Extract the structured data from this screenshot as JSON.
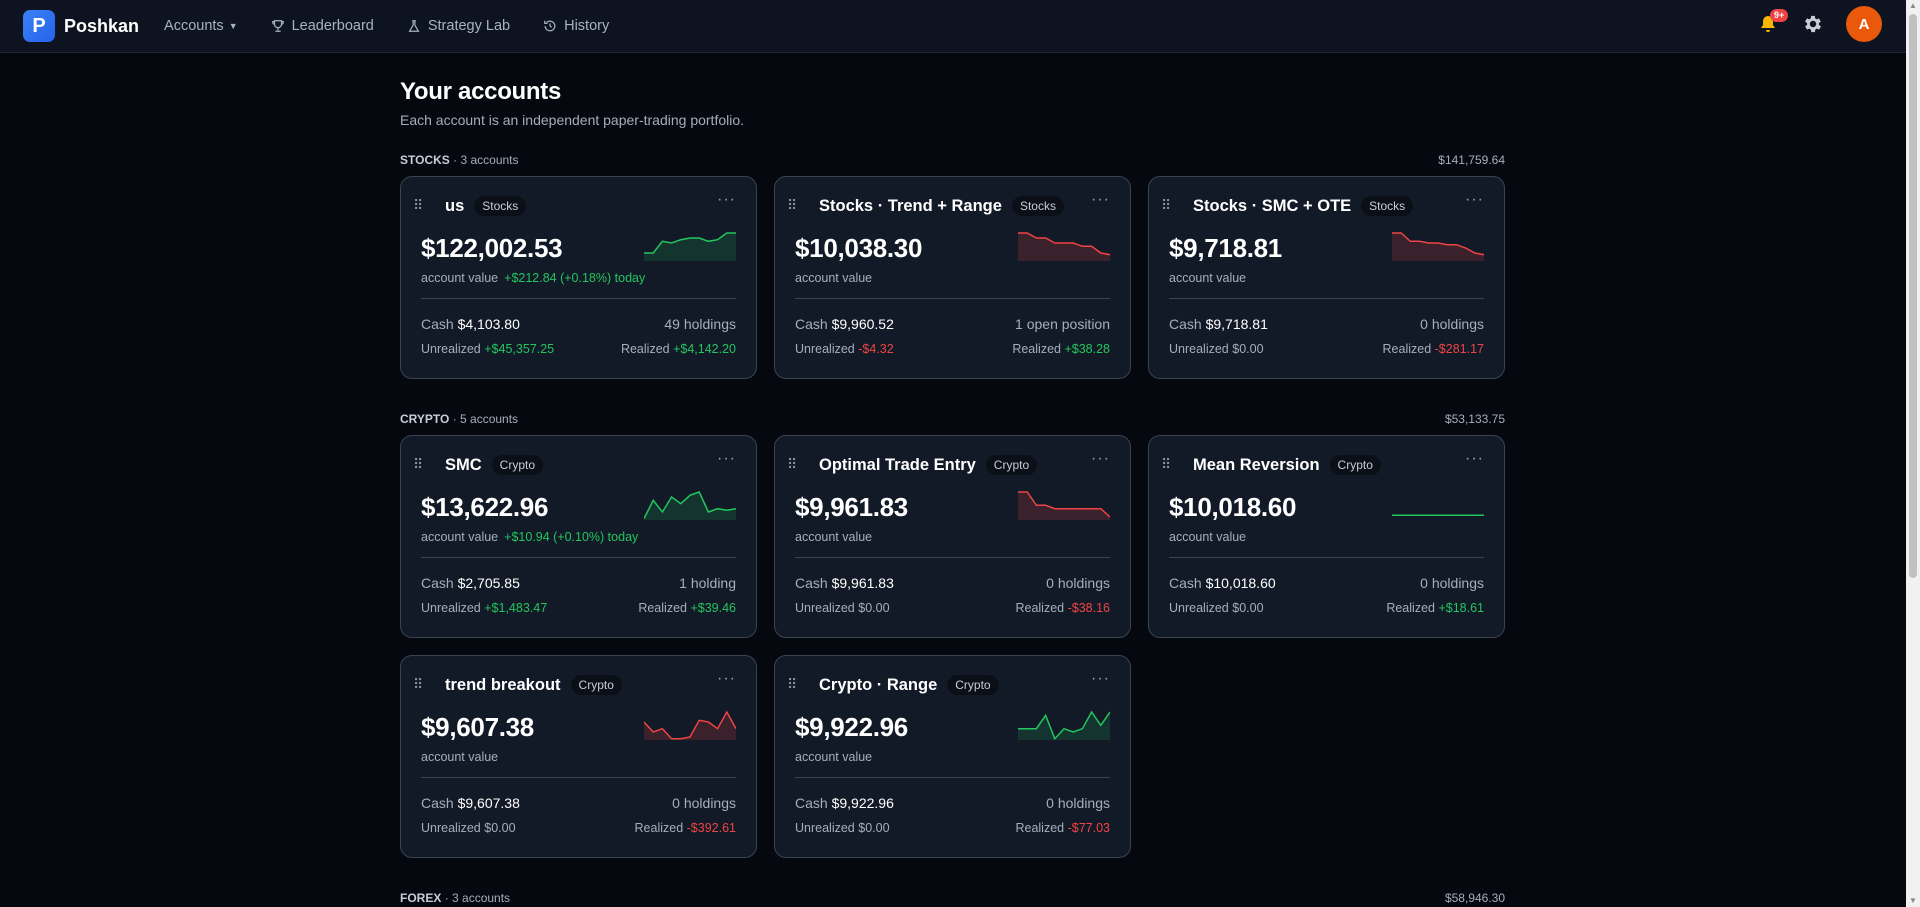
{
  "app": {
    "brand": "Poshkan",
    "logo_letter": "P"
  },
  "nav": {
    "accounts": "Accounts",
    "leaderboard": "Leaderboard",
    "strategy_lab": "Strategy Lab",
    "history": "History"
  },
  "notifications": {
    "badge": "9+"
  },
  "user": {
    "initial": "A"
  },
  "page": {
    "title": "Your accounts",
    "subtitle": "Each account is an independent paper-trading portfolio."
  },
  "sections": {
    "stocks": {
      "name": "STOCKS",
      "count": "· 3 accounts",
      "total": "$141,759.64"
    },
    "crypto": {
      "name": "CRYPTO",
      "count": "· 5 accounts",
      "total": "$53,133.75"
    },
    "forex": {
      "name": "FOREX",
      "count": "· 3 accounts",
      "total": "$58,946.30"
    }
  },
  "labels": {
    "account_value": "account value",
    "cash": "Cash",
    "unrealized": "Unrealized",
    "realized": "Realized"
  },
  "cards": [
    {
      "name": "us",
      "type": "Stocks",
      "value": "$122,002.53",
      "today": "+$212.84 (+0.18%) today",
      "cash": "$4,103.80",
      "holdings": "49 holdings",
      "unrealized": "+$45,357.25",
      "realized": "+$4,142.20",
      "unrealized_color": "pos",
      "realized_color": "pos",
      "trend": "up",
      "spark": [
        12,
        12,
        5,
        6,
        4,
        3,
        3,
        5,
        4,
        0,
        0
      ]
    },
    {
      "name": "Stocks · Trend + Range",
      "type": "Stocks",
      "value": "$10,038.30",
      "today": "",
      "cash": "$9,960.52",
      "holdings": "1 open position",
      "unrealized": "-$4.32",
      "realized": "+$38.28",
      "unrealized_color": "neg",
      "realized_color": "pos",
      "trend": "down",
      "spark": [
        0,
        0,
        3,
        3,
        6,
        6,
        6,
        8,
        8,
        12,
        13
      ]
    },
    {
      "name": "Stocks · SMC + OTE",
      "type": "Stocks",
      "value": "$9,718.81",
      "today": "",
      "cash": "$9,718.81",
      "holdings": "0 holdings",
      "unrealized": "$0.00",
      "realized": "-$281.17",
      "unrealized_color": "neu",
      "realized_color": "neg",
      "trend": "down",
      "spark": [
        0,
        0,
        5,
        5,
        6,
        6,
        7,
        7,
        9,
        12,
        13
      ]
    },
    {
      "name": "SMC",
      "type": "Crypto",
      "value": "$13,622.96",
      "today": "+$10.94 (+0.10%) today",
      "cash": "$2,705.85",
      "holdings": "1 holding",
      "unrealized": "+$1,483.47",
      "realized": "+$39.46",
      "unrealized_color": "pos",
      "realized_color": "pos",
      "trend": "up",
      "spark": [
        16,
        5,
        12,
        3,
        7,
        2,
        0,
        12,
        10,
        11,
        10
      ]
    },
    {
      "name": "Optimal Trade Entry",
      "type": "Crypto",
      "value": "$9,961.83",
      "today": "",
      "cash": "$9,961.83",
      "holdings": "0 holdings",
      "unrealized": "$0.00",
      "realized": "-$38.16",
      "unrealized_color": "neu",
      "realized_color": "neg",
      "trend": "down",
      "spark": [
        0,
        0,
        8,
        8,
        10,
        10,
        10,
        10,
        10,
        10,
        15
      ]
    },
    {
      "name": "Mean Reversion",
      "type": "Crypto",
      "value": "$10,018.60",
      "today": "",
      "cash": "$10,018.60",
      "holdings": "0 holdings",
      "unrealized": "$0.00",
      "realized": "+$18.61",
      "unrealized_color": "neu",
      "realized_color": "pos",
      "trend": "flat",
      "spark": [
        14,
        14,
        14,
        14,
        14,
        14,
        14,
        14,
        14,
        14,
        14
      ]
    },
    {
      "name": "trend breakout",
      "type": "Crypto",
      "value": "$9,607.38",
      "today": "",
      "cash": "$9,607.38",
      "holdings": "0 holdings",
      "unrealized": "$0.00",
      "realized": "-$392.61",
      "unrealized_color": "neu",
      "realized_color": "neg",
      "trend": "down",
      "spark": [
        6,
        12,
        10,
        16,
        16,
        15,
        5,
        6,
        10,
        0,
        10
      ]
    },
    {
      "name": "Crypto · Range",
      "type": "Crypto",
      "value": "$9,922.96",
      "today": "",
      "cash": "$9,922.96",
      "holdings": "0 holdings",
      "unrealized": "$0.00",
      "realized": "-$77.03",
      "unrealized_color": "neu",
      "realized_color": "neg",
      "trend": "up",
      "spark": [
        10,
        10,
        10,
        2,
        16,
        10,
        12,
        10,
        0,
        8,
        0
      ]
    }
  ],
  "colors": {
    "accent": "#3b82f6",
    "positive": "#22c55e",
    "negative": "#ef4444",
    "avatar": "#ea580c",
    "badge": "#ef4444"
  }
}
